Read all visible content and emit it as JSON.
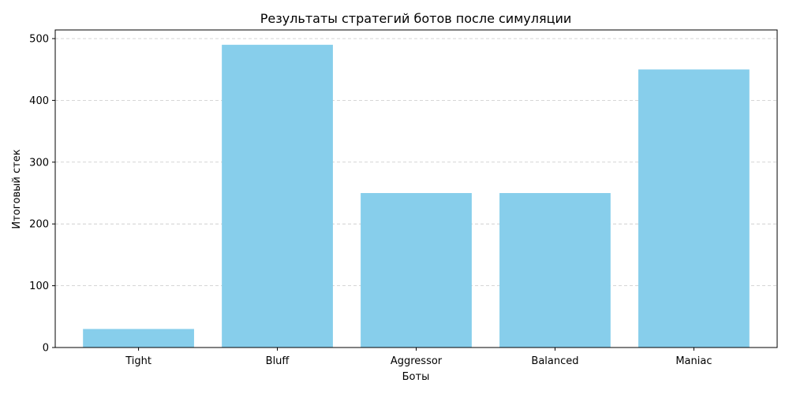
{
  "chart_data": {
    "type": "bar",
    "title": "Результаты стратегий ботов после симуляции",
    "xlabel": "Боты",
    "ylabel": "Итоговый стек",
    "categories": [
      "Tight",
      "Bluff",
      "Aggressor",
      "Balanced",
      "Maniac"
    ],
    "values": [
      30,
      490,
      250,
      250,
      450
    ],
    "ylim": [
      0,
      514
    ],
    "yticks": [
      0,
      100,
      200,
      300,
      400,
      500
    ],
    "grid": "y, dashed",
    "bar_color": "#87ceeb"
  }
}
